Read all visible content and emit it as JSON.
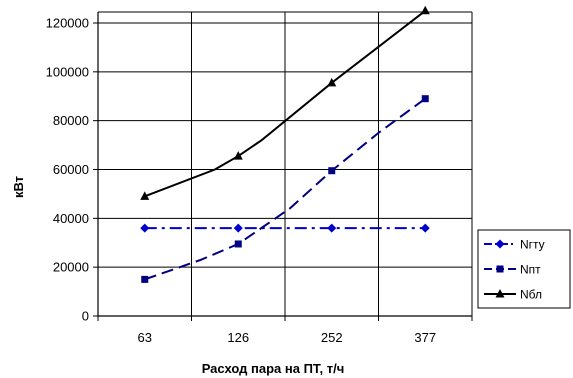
{
  "chart_data": {
    "type": "line",
    "title": "",
    "xlabel": "Расход пара на ПТ, т/ч",
    "ylabel": "кВт",
    "categories": [
      "63",
      "126",
      "252",
      "377"
    ],
    "ylim": [
      0,
      120000
    ],
    "yticks": [
      0,
      20000,
      40000,
      60000,
      80000,
      100000,
      120000
    ],
    "grid": {
      "horizontal": true,
      "vertical": true
    },
    "legend_position": "right",
    "series": [
      {
        "name": "Nгту",
        "color": "#0000cc",
        "marker": "diamond",
        "dash": "dash-dot",
        "points": [
          [
            0,
            36000
          ],
          [
            1,
            36000
          ],
          [
            2,
            36000
          ],
          [
            3,
            36000
          ]
        ],
        "markers_at": [
          0,
          1,
          2,
          3
        ]
      },
      {
        "name": "Nпт",
        "color": "#000080",
        "marker": "square",
        "dash": "dash",
        "points": [
          [
            0,
            15000
          ],
          [
            0.6,
            23000
          ],
          [
            1,
            29500
          ],
          [
            1.55,
            44000
          ],
          [
            2,
            59500
          ],
          [
            2.5,
            75000
          ],
          [
            3,
            89000
          ]
        ],
        "markers_at": [
          0,
          2,
          4,
          6
        ]
      },
      {
        "name": "Nбл",
        "color": "#000000",
        "marker": "triangle",
        "dash": "solid",
        "points": [
          [
            0,
            49000
          ],
          [
            0.75,
            60000
          ],
          [
            1,
            65500
          ],
          [
            1.25,
            72000
          ],
          [
            2,
            95500
          ],
          [
            3,
            125000
          ]
        ],
        "markers_at": [
          0,
          2,
          4,
          5
        ]
      }
    ]
  }
}
